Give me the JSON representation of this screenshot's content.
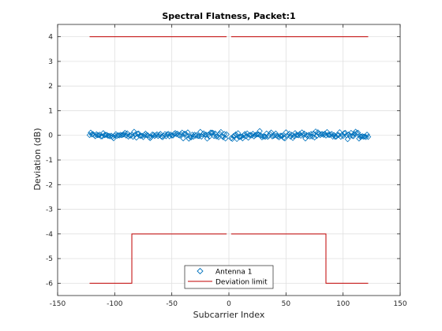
{
  "chart_data": {
    "type": "scatter",
    "title": "Spectral Flatness, Packet:1",
    "xlabel": "Subcarrier Index",
    "ylabel": "Deviation (dB)",
    "xlim": [
      -150,
      150
    ],
    "ylim": [
      -6.5,
      4.5
    ],
    "xticks": [
      -150,
      -100,
      -50,
      0,
      50,
      100,
      150
    ],
    "yticks": [
      -6,
      -5,
      -4,
      -3,
      -2,
      -1,
      0,
      1,
      2,
      3,
      4
    ],
    "grid": true,
    "legend_position": "bottom-center",
    "series": [
      {
        "name": "Antenna 1",
        "type": "scatter",
        "marker": "diamond",
        "color": "#0072BD",
        "x_range": [
          -122,
          122
        ],
        "excluded_x": [
          -1,
          0,
          1
        ],
        "y_mean": 0,
        "y_spread": 0.13
      },
      {
        "name": "Deviation limit",
        "type": "line",
        "color": "#C00000",
        "segments": [
          [
            [
              -122,
              4
            ],
            [
              -2,
              4
            ]
          ],
          [
            [
              2,
              4
            ],
            [
              122,
              4
            ]
          ],
          [
            [
              -122,
              -6
            ],
            [
              -85,
              -6
            ],
            [
              -85,
              -4
            ],
            [
              -2,
              -4
            ]
          ],
          [
            [
              2,
              -4
            ],
            [
              85,
              -4
            ],
            [
              85,
              -6
            ],
            [
              122,
              -6
            ]
          ]
        ]
      }
    ]
  }
}
